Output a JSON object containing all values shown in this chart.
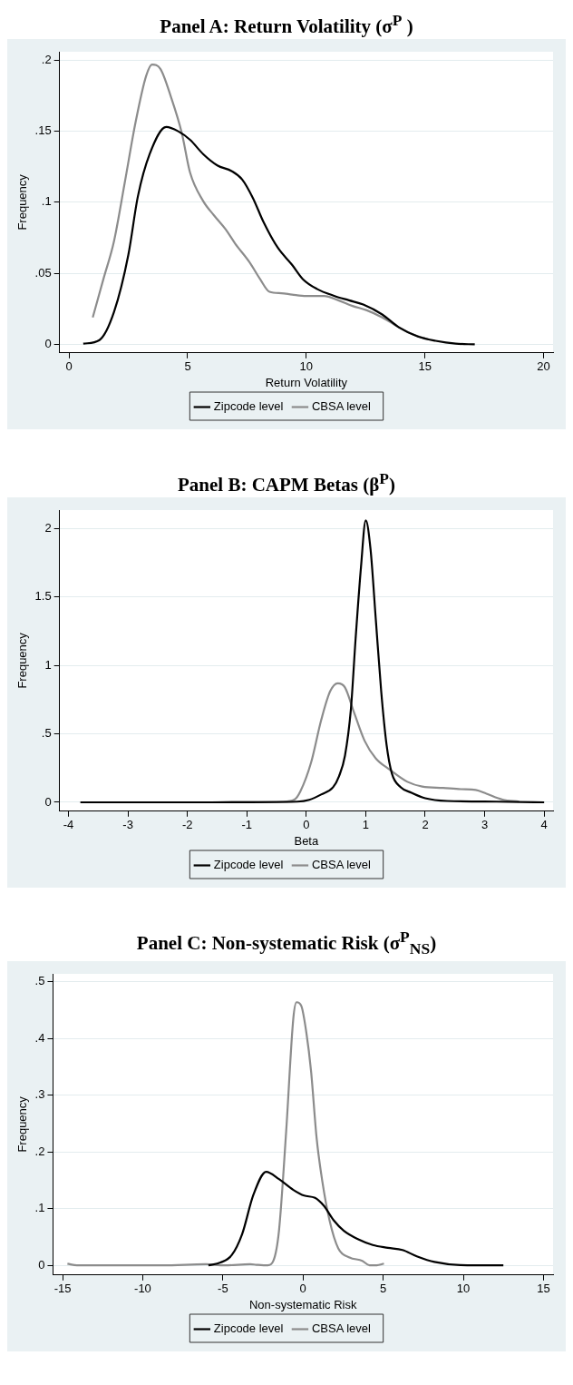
{
  "chart_data": [
    {
      "type": "line",
      "title": "Panel A: Return Volatility (σ$^{P}$ )",
      "xlabel": "Return Volatility",
      "ylabel": "Frequency",
      "xlim": [
        -0.4,
        20.4
      ],
      "xticks": [
        0,
        5,
        10,
        15,
        20
      ],
      "ylim": [
        -0.006,
        0.206
      ],
      "yticks": [
        {
          "value": 0,
          "label": "0"
        },
        {
          "value": 0.05,
          "label": ".05"
        },
        {
          "value": 0.1,
          "label": ".1"
        },
        {
          "value": 0.15,
          "label": ".15"
        },
        {
          "value": 0.2,
          "label": ".2"
        }
      ],
      "grid": "y",
      "legend": "bottom",
      "marker": "none",
      "line_style": "solid",
      "series": [
        {
          "name": "Zipcode level",
          "color": "#000000",
          "x": [
            0.6,
            1.28,
            1.9,
            2.5,
            2.9,
            3.4,
            4.1,
            4.6,
            5.1,
            5.65,
            6.25,
            6.85,
            7.3,
            7.75,
            8.2,
            8.8,
            9.4,
            9.85,
            10.45,
            11.2,
            11.8,
            12.4,
            13.2,
            13.9,
            14.7,
            15.45,
            16.3,
            17.1
          ],
          "values": [
            0.0005,
            0.003,
            0.023,
            0.063,
            0.104,
            0.134,
            0.153,
            0.15,
            0.144,
            0.134,
            0.126,
            0.122,
            0.116,
            0.103,
            0.086,
            0.068,
            0.056,
            0.046,
            0.039,
            0.034,
            0.031,
            0.028,
            0.021,
            0.012,
            0.0055,
            0.0025,
            0.0005,
            0
          ]
        },
        {
          "name": "CBSA level",
          "color": "#8c8c8c",
          "x": [
            1.0,
            1.45,
            1.9,
            2.35,
            2.8,
            3.25,
            3.5,
            3.85,
            4.3,
            4.75,
            5.1,
            5.65,
            6.1,
            6.6,
            7.0,
            7.6,
            8.05,
            8.45,
            8.95,
            9.4,
            10.0,
            10.75,
            11.35,
            11.95,
            12.55,
            13.2,
            13.9,
            14.5,
            15.15
          ],
          "values": [
            0.019,
            0.046,
            0.073,
            0.114,
            0.156,
            0.189,
            0.197,
            0.194,
            0.174,
            0.149,
            0.121,
            0.101,
            0.091,
            0.081,
            0.071,
            0.058,
            0.046,
            0.037,
            0.036,
            0.035,
            0.034,
            0.034,
            0.031,
            0.027,
            0.024,
            0.019,
            0.012,
            0.007,
            0.0035
          ]
        }
      ]
    },
    {
      "type": "line",
      "title": "Panel B: CAPM Betas (β$^{P}$)",
      "xlabel": "Beta",
      "ylabel": "Frequency",
      "xlim": [
        -4.15,
        4.15
      ],
      "xticks": [
        -4,
        -3,
        -2,
        -1,
        0,
        1,
        2,
        3,
        4
      ],
      "ylim": [
        -0.065,
        2.135
      ],
      "yticks": [
        {
          "value": 0,
          "label": "0"
        },
        {
          "value": 0.5,
          "label": ".5"
        },
        {
          "value": 1,
          "label": "1"
        },
        {
          "value": 1.5,
          "label": "1.5"
        },
        {
          "value": 2,
          "label": "2"
        }
      ],
      "grid": "y",
      "legend": "bottom",
      "marker": "none",
      "line_style": "solid",
      "series": [
        {
          "name": "Zipcode level",
          "color": "#000000",
          "x": [
            -3.8,
            -1.6,
            -0.15,
            0.05,
            0.25,
            0.45,
            0.55,
            0.65,
            0.75,
            0.83,
            0.92,
            1.0,
            1.08,
            1.17,
            1.26,
            1.35,
            1.44,
            1.59,
            1.77,
            2.0,
            2.37,
            3.2,
            4.0
          ],
          "values": [
            0,
            0,
            0.005,
            0.018,
            0.057,
            0.11,
            0.19,
            0.34,
            0.68,
            1.2,
            1.72,
            2.06,
            1.85,
            1.33,
            0.81,
            0.42,
            0.21,
            0.11,
            0.07,
            0.03,
            0.01,
            0.005,
            0
          ]
        },
        {
          "name": "CBSA level",
          "color": "#8c8c8c",
          "x": [
            -1.5,
            -0.4,
            -0.2,
            -0.1,
            0.08,
            0.25,
            0.4,
            0.53,
            0.65,
            0.8,
            0.98,
            1.17,
            1.4,
            1.7,
            1.95,
            2.3,
            2.6,
            2.85,
            3.03,
            3.3,
            3.58
          ],
          "values": [
            0,
            0.005,
            0.02,
            0.08,
            0.29,
            0.6,
            0.81,
            0.87,
            0.84,
            0.66,
            0.45,
            0.32,
            0.24,
            0.15,
            0.115,
            0.105,
            0.096,
            0.09,
            0.063,
            0.02,
            0.005
          ]
        }
      ]
    },
    {
      "type": "line",
      "title": "Panel C: Non-systematic Risk (σ$^{P}$$_{NS}$)",
      "xlabel": "Non-systematic Risk",
      "ylabel": "Frequency",
      "xlim": [
        -15.6,
        15.6
      ],
      "xticks": [
        -15,
        -10,
        -5,
        0,
        5,
        10,
        15
      ],
      "ylim": [
        -0.017,
        0.514
      ],
      "yticks": [
        {
          "value": 0,
          "label": "0"
        },
        {
          "value": 0.1,
          "label": ".1"
        },
        {
          "value": 0.2,
          "label": ".2"
        },
        {
          "value": 0.3,
          "label": ".3"
        },
        {
          "value": 0.4,
          "label": ".4"
        },
        {
          "value": 0.5,
          "label": ".5"
        }
      ],
      "grid": "y",
      "legend": "bottom",
      "marker": "none",
      "line_style": "solid",
      "series": [
        {
          "name": "Zipcode level",
          "color": "#000000",
          "x": [
            -5.9,
            -5.15,
            -4.45,
            -3.8,
            -3.1,
            -2.3,
            -1.5,
            -0.6,
            0.07,
            0.75,
            1.3,
            1.9,
            2.55,
            3.45,
            4.35,
            5.3,
            6.2,
            7.1,
            8.2,
            9.8,
            12.5
          ],
          "values": [
            0,
            0.005,
            0.018,
            0.055,
            0.124,
            0.165,
            0.152,
            0.133,
            0.123,
            0.119,
            0.105,
            0.08,
            0.061,
            0.046,
            0.036,
            0.031,
            0.027,
            0.016,
            0.006,
            0.0006,
            0
          ]
        },
        {
          "name": "CBSA level",
          "color": "#8c8c8c",
          "x": [
            -14.7,
            -14.1,
            -8.75,
            -6.05,
            -4.9,
            -3.3,
            -2.9,
            -2.2,
            -1.85,
            -1.5,
            -1.05,
            -0.6,
            -0.4,
            -0.1,
            0.2,
            0.5,
            0.85,
            1.2,
            1.65,
            2.2,
            2.9,
            3.7,
            4.15,
            4.6,
            5.05
          ],
          "values": [
            0.003,
            0,
            0,
            0.002,
            0,
            0.002,
            0.001,
            0,
            0.008,
            0.061,
            0.237,
            0.437,
            0.464,
            0.457,
            0.412,
            0.343,
            0.224,
            0.149,
            0.08,
            0.03,
            0.014,
            0.008,
            0,
            0,
            0.003
          ]
        }
      ]
    }
  ]
}
